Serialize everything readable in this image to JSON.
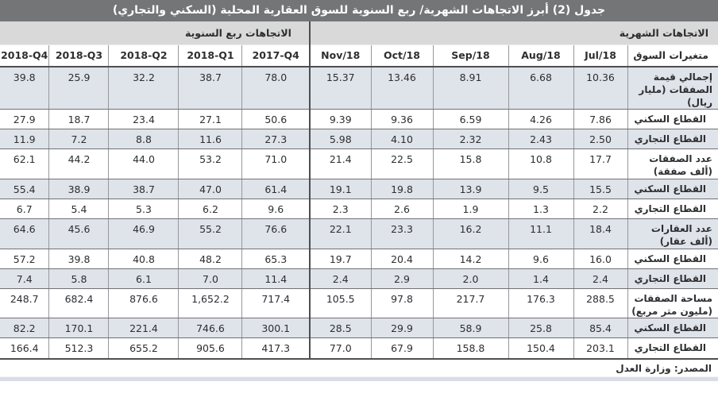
{
  "title": "جدول (2) أبرز الاتجاهات الشهرية/ ربع السنوية للسوق العقارية المحلية (السكني والتجاري)",
  "table": {
    "group_monthly": "الاتجاهات الشهرية",
    "group_quarterly": "الاتجاهات ربع السنوية",
    "label_header": "متغيرات السوق",
    "monthly_columns": [
      "Jul/18",
      "Aug/18",
      "Sep/18",
      "Oct/18",
      "Nov/18"
    ],
    "quarterly_columns": [
      "2017-Q4",
      "2018-Q1",
      "2018-Q2",
      "2018-Q3",
      "2018-Q4"
    ],
    "rows": [
      {
        "label": "إجمالي قيمة الصفقات (مليار ريال)",
        "indent": false,
        "highlight": true,
        "monthly": [
          "10.36",
          "6.68",
          "8.91",
          "13.46",
          "15.37"
        ],
        "quarterly": [
          "78.0",
          "38.7",
          "32.2",
          "25.9",
          "39.8"
        ]
      },
      {
        "label": "القطاع السكني",
        "indent": true,
        "highlight": false,
        "monthly": [
          "7.86",
          "4.26",
          "6.59",
          "9.36",
          "9.39"
        ],
        "quarterly": [
          "50.6",
          "27.1",
          "23.4",
          "18.7",
          "27.9"
        ]
      },
      {
        "label": "القطاع التجاري",
        "indent": true,
        "highlight": true,
        "monthly": [
          "2.50",
          "2.43",
          "2.32",
          "4.10",
          "5.98"
        ],
        "quarterly": [
          "27.3",
          "11.6",
          "8.8",
          "7.2",
          "11.9"
        ]
      },
      {
        "label": "عدد الصفقات (ألف صفقة)",
        "indent": false,
        "highlight": false,
        "monthly": [
          "17.7",
          "10.8",
          "15.8",
          "22.5",
          "21.4"
        ],
        "quarterly": [
          "71.0",
          "53.2",
          "44.0",
          "44.2",
          "62.1"
        ]
      },
      {
        "label": "القطاع السكني",
        "indent": true,
        "highlight": true,
        "monthly": [
          "15.5",
          "9.5",
          "13.9",
          "19.8",
          "19.1"
        ],
        "quarterly": [
          "61.4",
          "47.0",
          "38.7",
          "38.9",
          "55.4"
        ]
      },
      {
        "label": "القطاع التجاري",
        "indent": true,
        "highlight": false,
        "monthly": [
          "2.2",
          "1.3",
          "1.9",
          "2.6",
          "2.3"
        ],
        "quarterly": [
          "9.6",
          "6.2",
          "5.3",
          "5.4",
          "6.7"
        ]
      },
      {
        "label": "عدد العقارات (ألف عقار)",
        "indent": false,
        "highlight": true,
        "monthly": [
          "18.4",
          "11.1",
          "16.2",
          "23.3",
          "22.1"
        ],
        "quarterly": [
          "76.6",
          "55.2",
          "46.9",
          "45.6",
          "64.6"
        ]
      },
      {
        "label": "القطاع السكني",
        "indent": true,
        "highlight": false,
        "monthly": [
          "16.0",
          "9.6",
          "14.2",
          "20.4",
          "19.7"
        ],
        "quarterly": [
          "65.3",
          "48.2",
          "40.8",
          "39.8",
          "57.2"
        ]
      },
      {
        "label": "القطاع التجاري",
        "indent": true,
        "highlight": true,
        "monthly": [
          "2.4",
          "1.4",
          "2.0",
          "2.9",
          "2.4"
        ],
        "quarterly": [
          "11.4",
          "7.0",
          "6.1",
          "5.8",
          "7.4"
        ]
      },
      {
        "label": "مساحة الصفقات (مليون متر مربع)",
        "indent": false,
        "highlight": false,
        "monthly": [
          "288.5",
          "176.3",
          "217.7",
          "97.8",
          "105.5"
        ],
        "quarterly": [
          "717.4",
          "1,652.2",
          "876.6",
          "682.4",
          "248.7"
        ]
      },
      {
        "label": "القطاع السكني",
        "indent": true,
        "highlight": true,
        "monthly": [
          "85.4",
          "25.8",
          "58.9",
          "29.9",
          "28.5"
        ],
        "quarterly": [
          "300.1",
          "746.6",
          "221.4",
          "170.1",
          "82.2"
        ]
      },
      {
        "label": "القطاع التجاري",
        "indent": true,
        "highlight": false,
        "monthly": [
          "203.1",
          "150.4",
          "158.8",
          "67.9",
          "77.0"
        ],
        "quarterly": [
          "417.3",
          "905.6",
          "655.2",
          "512.3",
          "166.4"
        ]
      }
    ]
  },
  "source": "المصدر: وزارة العدل",
  "colors": {
    "title_bar": "#747577",
    "group_header": "#d9d9d9",
    "row_highlight": "#dfe3ea",
    "bottom_strip": "#d9dde5"
  }
}
